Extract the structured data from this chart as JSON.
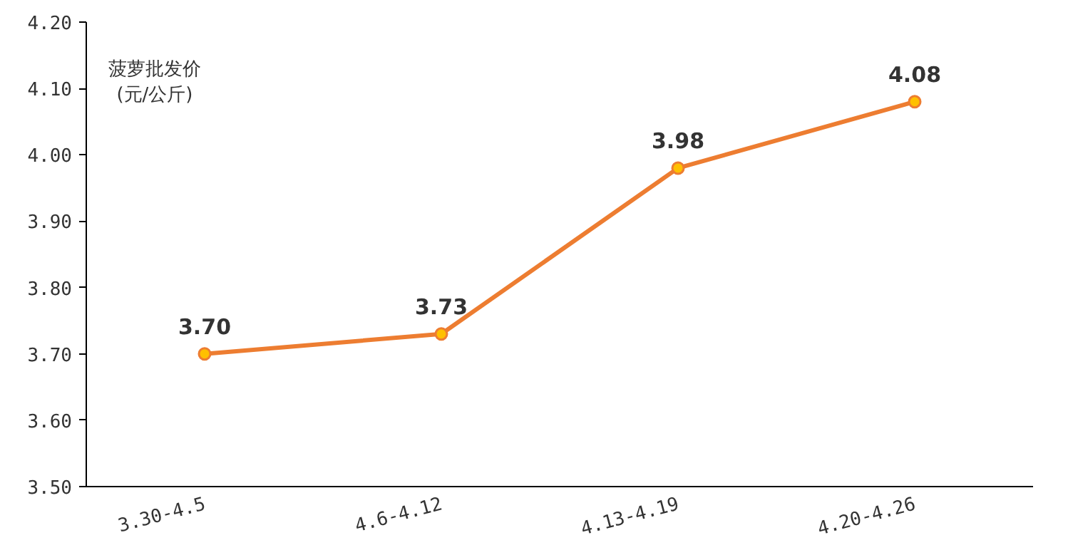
{
  "chart_data": {
    "type": "line",
    "ylabel": "菠萝批发价\n(元/公斤)",
    "categories": [
      "3.30-4.5",
      "4.6-4.12",
      "4.13-4.19",
      "4.20-4.26"
    ],
    "series": [
      {
        "color": "#ed7d31",
        "values": [
          3.7,
          3.73,
          3.98,
          4.08
        ],
        "value_labels": [
          "3.70",
          "3.73",
          "3.98",
          "4.08"
        ]
      }
    ],
    "ylim": [
      3.5,
      4.2
    ],
    "yticks": [
      {
        "value": 3.5,
        "label": "3.50"
      },
      {
        "value": 3.6,
        "label": "3.60"
      },
      {
        "value": 3.7,
        "label": "3.70"
      },
      {
        "value": 3.8,
        "label": "3.80"
      },
      {
        "value": 3.9,
        "label": "3.90"
      },
      {
        "value": 4.0,
        "label": "4.00"
      },
      {
        "value": 4.1,
        "label": "4.10"
      },
      {
        "value": 4.2,
        "label": "4.20"
      }
    ],
    "marker": "circle",
    "line_style": "solid"
  }
}
